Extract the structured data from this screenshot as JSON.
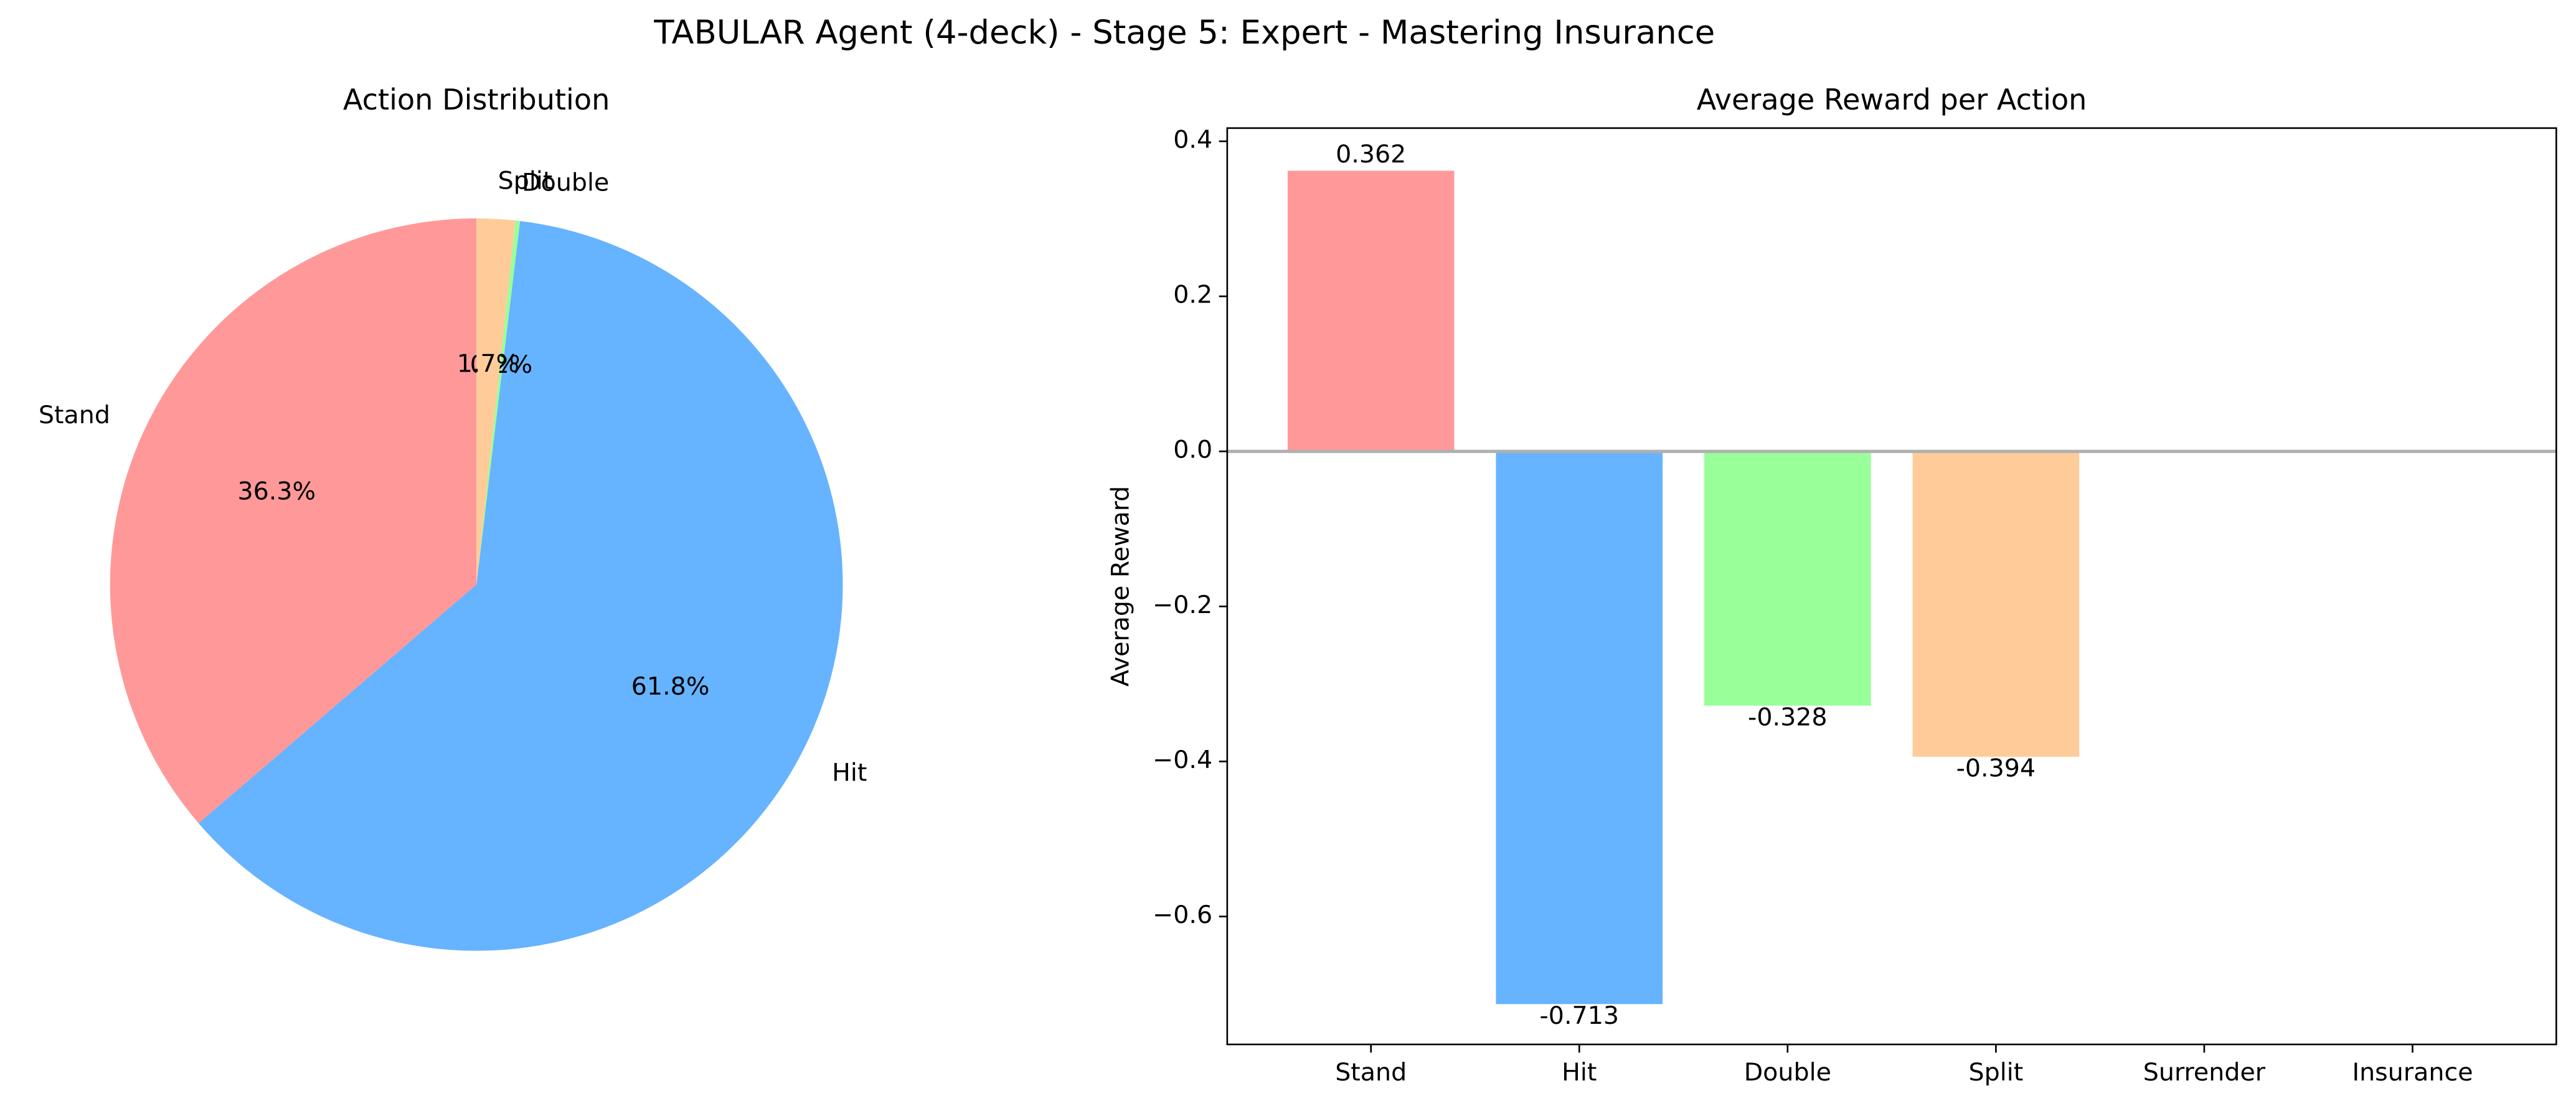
{
  "title": "TABULAR Agent (4-deck) - Stage 5: Expert - Mastering Insurance",
  "chart_data": [
    {
      "type": "pie",
      "title": "Action Distribution",
      "categories": [
        "Stand",
        "Hit",
        "Double",
        "Split"
      ],
      "values": [
        36.3,
        61.8,
        0.2,
        1.7
      ],
      "value_labels": [
        "36.3%",
        "61.8%",
        "0.2%",
        "1.7%"
      ],
      "colors": [
        "#ff9999",
        "#66b3ff",
        "#99ff99",
        "#ffcc99"
      ]
    },
    {
      "type": "bar",
      "title": "Average Reward per Action",
      "ylabel": "Average Reward",
      "categories": [
        "Stand",
        "Hit",
        "Double",
        "Split",
        "Surrender",
        "Insurance"
      ],
      "values": [
        0.362,
        -0.713,
        -0.328,
        -0.394,
        null,
        null
      ],
      "colors": [
        "#ff9999",
        "#66b3ff",
        "#99ff99",
        "#ffcc99",
        "#ff99cc",
        "#c2c2f0"
      ],
      "ylim": [
        -0.765,
        0.417
      ],
      "yticks": [
        {
          "value": -0.6,
          "label": "−0.6"
        },
        {
          "value": -0.4,
          "label": "−0.4"
        },
        {
          "value": -0.2,
          "label": "−0.2"
        },
        {
          "value": 0,
          "label": "0.0"
        },
        0.2,
        0.4
      ],
      "zero_line_color": "#b0b0b0"
    }
  ]
}
